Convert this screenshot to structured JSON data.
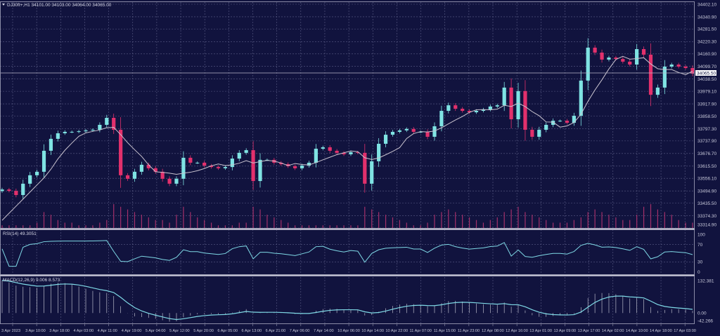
{
  "header": {
    "title": "DJ30ft+,H1 34101.00 34103.00 34064.00 34065.00"
  },
  "colors": {
    "background": "#11133e",
    "grid": "#5b5d86",
    "bull_candle": "#7fe3e3",
    "bear_candle": "#e2306c",
    "moving_average": "#c9c3cf",
    "volume": "#a3306a",
    "rsi_line": "#7fd9e6",
    "macd_histogram": "#b9bac9",
    "macd_signal": "#7fd9e6"
  },
  "chart_data": [
    {
      "type": "candlestick",
      "symbol": "DJ30ft+",
      "timeframe": "H1",
      "ohlc_last": {
        "open": 34101.0,
        "high": 34103.0,
        "low": 34064.0,
        "close": 34065.0
      },
      "current_price_label": "34065.50",
      "y_ticks": [
        "34402.10",
        "34340.90",
        "34281.50",
        "34220.30",
        "34160.90",
        "34099.70",
        "34038.50",
        "33979.10",
        "33917.90",
        "33858.50",
        "33797.30",
        "33737.90",
        "33676.70",
        "33615.50",
        "33556.10",
        "33494.90",
        "33435.50",
        "33374.30",
        "33314.90"
      ],
      "ylim": [
        33314.9,
        34402.1
      ],
      "grid": true,
      "close": [
        33502,
        33495,
        33475,
        33530,
        33571,
        33588,
        33690,
        33748,
        33775,
        33782,
        33782,
        33785,
        33789,
        33792,
        33816,
        33850,
        33792,
        33571,
        33554,
        33588,
        33622,
        33605,
        33588,
        33554,
        33530,
        33554,
        33656,
        33632,
        33632,
        33618,
        33611,
        33605,
        33611,
        33652,
        33680,
        33693,
        33543,
        33646,
        33646,
        33632,
        33625,
        33615,
        33605,
        33618,
        33632,
        33700,
        33707,
        33690,
        33680,
        33673,
        33683,
        33680,
        33530,
        33639,
        33724,
        33768,
        33782,
        33789,
        33796,
        33782,
        33782,
        33758,
        33809,
        33884,
        33911,
        33894,
        33884,
        33877,
        33884,
        33891,
        33905,
        33911,
        33997,
        33843,
        33980,
        33792,
        33758,
        33792,
        33816,
        33836,
        33836,
        33826,
        33860,
        34031,
        34191,
        34167,
        34133,
        34143,
        34136,
        34123,
        34109,
        34184,
        34157,
        33962,
        33997,
        34099,
        34109,
        34099,
        34092,
        34065
      ],
      "volume": [
        1,
        1,
        1,
        1,
        1,
        2,
        6,
        5,
        3,
        2,
        2,
        1,
        1,
        1,
        2,
        3,
        9,
        8,
        7,
        6,
        5,
        4,
        3,
        3,
        2,
        5,
        8,
        6,
        4,
        3,
        2,
        1,
        1,
        1,
        2,
        2,
        8,
        7,
        5,
        4,
        3,
        2,
        1,
        1,
        1,
        1,
        1,
        1,
        1,
        1,
        1,
        1,
        8,
        7,
        6,
        5,
        4,
        3,
        2,
        1,
        1,
        2,
        5,
        6,
        7,
        6,
        5,
        4,
        3,
        2,
        3,
        4,
        6,
        7,
        8,
        6,
        5,
        4,
        3,
        2,
        2,
        2,
        3,
        4,
        6,
        7,
        6,
        5,
        4,
        3,
        3,
        5,
        8,
        9,
        7,
        6,
        5,
        3,
        2,
        2
      ]
    },
    {
      "type": "line",
      "indicator": "RSI(14)",
      "label": "RSI(14) 49.3051",
      "y_ticks": [
        "100",
        "70",
        "30",
        "0"
      ],
      "ylim": [
        0,
        100
      ]
    },
    {
      "type": "bar+line",
      "indicator": "MACD(12,26,9)",
      "label": "MACD(12,26,9) 9.006 8.573",
      "y_ticks": [
        "132.381",
        "0.00",
        "-42.266"
      ],
      "ylim": [
        -42.266,
        132.381
      ]
    }
  ],
  "x_ticks": [
    "3 Apr 2023",
    "3 Apr 10:00",
    "3 Apr 18:00",
    "4 Apr 03:00",
    "4 Apr 11:00",
    "4 Apr 19:00",
    "5 Apr 04:00",
    "5 Apr 12:00",
    "5 Apr 20:00",
    "6 Apr 05:00",
    "6 Apr 13:00",
    "6 Apr 21:00",
    "7 Apr 06:00",
    "7 Apr 14:00",
    "10 Apr 06:00",
    "10 Apr 14:00",
    "10 Apr 22:00",
    "11 Apr 07:00",
    "11 Apr 15:00",
    "11 Apr 23:00",
    "12 Apr 08:00",
    "12 Apr 16:00",
    "13 Apr 01:00",
    "13 Apr 09:00",
    "13 Apr 17:00",
    "14 Apr 02:00",
    "14 Apr 10:00",
    "14 Apr 18:00",
    "17 Apr 03:00"
  ]
}
